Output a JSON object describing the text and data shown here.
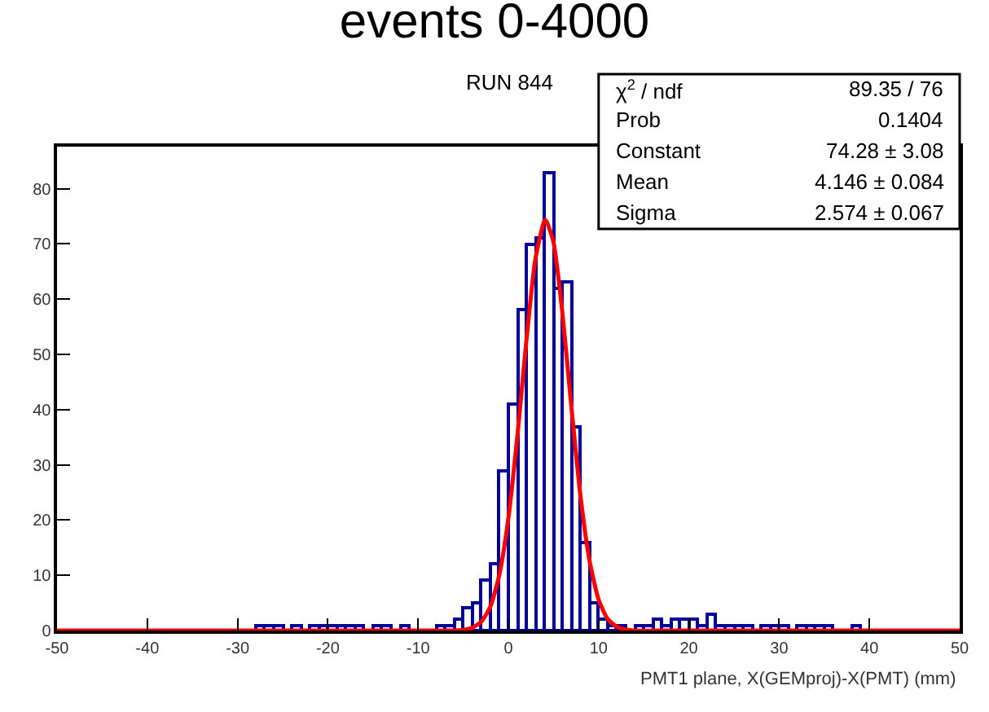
{
  "chart_data": {
    "type": "histogram",
    "title": "events 0-4000",
    "subtitle": "RUN 844",
    "xlabel": "PMT1 plane, X(GEMproj)-X(PMT) (mm)",
    "bins": [
      -50,
      -49,
      -48,
      -47,
      -46,
      -45,
      -44,
      -43,
      -42,
      -41,
      -40,
      -39,
      -38,
      -37,
      -36,
      -35,
      -34,
      -33,
      -32,
      -31,
      -30,
      -29,
      -28,
      -27,
      -26,
      -25,
      -24,
      -23,
      -22,
      -21,
      -20,
      -19,
      -18,
      -17,
      -16,
      -15,
      -14,
      -13,
      -12,
      -11,
      -10,
      -9,
      -8,
      -7,
      -6,
      -5,
      -4,
      -3,
      -2,
      -1,
      0,
      1,
      2,
      3,
      4,
      5,
      6,
      7,
      8,
      9,
      10,
      11,
      12,
      13,
      14,
      15,
      16,
      17,
      18,
      19,
      20,
      21,
      22,
      23,
      24,
      25,
      26,
      27,
      28,
      29,
      30,
      31,
      32,
      33,
      34,
      35,
      36,
      37,
      38,
      39,
      40,
      41,
      42,
      43,
      44,
      45,
      46,
      47,
      48,
      49,
      50
    ],
    "values": [
      0,
      0,
      0,
      0,
      0,
      0,
      0,
      0,
      0,
      0,
      0,
      0,
      0,
      0,
      0,
      0,
      0,
      0,
      0,
      0,
      0,
      0,
      1,
      1,
      1,
      0,
      1,
      0,
      1,
      1,
      1,
      1,
      1,
      1,
      0,
      1,
      1,
      0,
      1,
      0,
      0,
      0,
      1,
      1,
      2,
      4,
      5,
      9,
      12,
      29,
      41,
      58,
      70,
      71,
      83,
      62,
      63,
      37,
      16,
      5,
      2,
      1,
      1,
      0,
      1,
      1,
      2,
      1,
      2,
      2,
      2,
      1,
      3,
      1,
      1,
      1,
      1,
      0,
      1,
      1,
      1,
      0,
      1,
      1,
      1,
      1,
      0,
      0,
      1,
      0,
      0,
      0,
      0,
      0,
      0,
      0,
      0,
      0,
      0,
      0
    ],
    "color": "#000099",
    "series": [
      {
        "type": "line",
        "color": "#ff0000",
        "x": [
          -50,
          -20,
          -10,
          -6,
          -5,
          -4,
          -3,
          -2,
          -1,
          0,
          1,
          2,
          3,
          4,
          4.146,
          5,
          6,
          7,
          8,
          9,
          10,
          11,
          12,
          13,
          14,
          18,
          30,
          50
        ],
        "values": [
          0,
          0,
          0,
          0,
          0.1,
          0.5,
          1.6,
          4.3,
          10.1,
          20.3,
          35.2,
          52.5,
          67.3,
          74.2,
          74.3,
          70.3,
          57.3,
          40.2,
          24.2,
          12.6,
          5.6,
          2.1,
          0.7,
          0.2,
          0,
          0,
          0,
          0
        ]
      }
    ],
    "xlim": [
      -50,
      50
    ],
    "xticks": [
      -50,
      -40,
      -30,
      -20,
      -10,
      0,
      10,
      20,
      30,
      40,
      50
    ],
    "ylim": [
      0,
      87.6
    ],
    "yticks": [
      0,
      10,
      20,
      30,
      40,
      50,
      60,
      70,
      80
    ],
    "annotations": [
      "χ$^{2}$ / ndf",
      "89.35 / 76",
      "Prob",
      "0.1404",
      "Constant",
      "74.28 ± 3.08",
      "Mean",
      "4.146 ± 0.084",
      "Sigma",
      "2.574 ± 0.067"
    ]
  }
}
